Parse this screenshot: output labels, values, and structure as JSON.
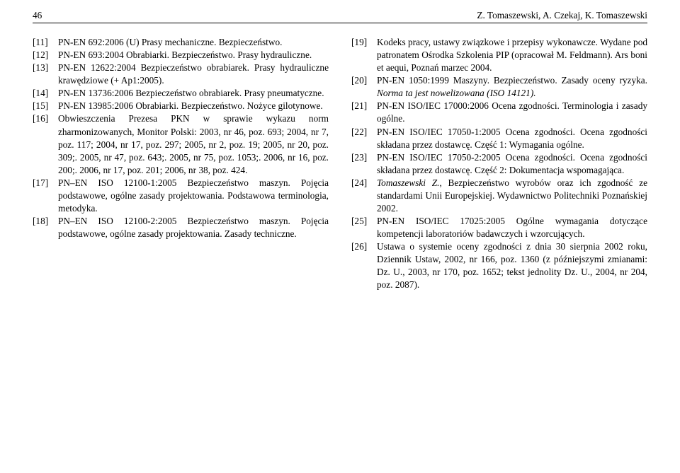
{
  "header": {
    "page_number": "46",
    "authors": "Z. Tomaszewski, A. Czekaj, K. Tomaszewski"
  },
  "left": {
    "refs": [
      {
        "n": "[11]",
        "text": "PN-EN 692:2006 (U) Prasy mechaniczne. Bezpieczeństwo."
      },
      {
        "n": "[12]",
        "text": "PN-EN 693:2004 Obrabiarki. Bezpieczeństwo. Prasy hydrauliczne."
      },
      {
        "n": "[13]",
        "text": "PN-EN 12622:2004 Bezpieczeństwo obrabiarek. Prasy hydrauliczne krawędziowe (+ Ap1:2005)."
      },
      {
        "n": "[14]",
        "text": "PN-EN 13736:2006 Bezpieczeństwo obrabiarek. Prasy pneumatyczne."
      },
      {
        "n": "[15]",
        "text": "PN-EN 13985:2006 Obrabiarki. Bezpieczeństwo. Nożyce gilotynowe."
      },
      {
        "n": "[16]",
        "text": "Obwieszczenia Prezesa PKN w sprawie wykazu norm zharmonizowanych, Monitor Polski: 2003, nr 46, poz. 693; 2004, nr 7, poz. 117; 2004, nr 17, poz. 297; 2005, nr 2, poz. 19; 2005, nr 20, poz. 309;. 2005, nr 47, poz. 643;. 2005, nr 75, poz. 1053;. 2006, nr 16, poz. 200;. 2006, nr 17, poz. 201; 2006, nr 38, poz. 424."
      },
      {
        "n": "[17]",
        "text": "PN–EN ISO 12100-1:2005 Bezpieczeństwo maszyn. Pojęcia podstawowe, ogólne zasady projektowania. Podstawowa terminologia, metodyka."
      },
      {
        "n": "[18]",
        "text": "PN–EN ISO 12100-2:2005 Bezpieczeństwo maszyn. Pojęcia podstawowe, ogólne zasady projektowania. Zasady techniczne."
      }
    ]
  },
  "right": {
    "refs": [
      {
        "n": "[19]",
        "text": "Kodeks pracy, ustawy związkowe i przepisy wykonawcze. Wydane pod patronatem Ośrodka Szkolenia PIP (opracował M. Feldmann). Ars boni et aequi, Poznań marzec 2004."
      },
      {
        "n": "[20]",
        "pre": "PN-EN 1050:1999 Maszyny. Bezpieczeństwo. Zasady oceny ryzyka. ",
        "italic": "Norma ta jest nowelizowana (ISO 14121)."
      },
      {
        "n": "[21]",
        "text": "PN-EN ISO/IEC 17000:2006 Ocena zgodności. Terminologia i zasady ogólne."
      },
      {
        "n": "[22]",
        "text": "PN-EN ISO/IEC 17050-1:2005 Ocena zgodności. Ocena zgodności składana przez dostawcę. Część 1: Wymagania ogólne."
      },
      {
        "n": "[23]",
        "text": "PN-EN ISO/IEC 17050-2:2005 Ocena zgodności. Ocena zgodności składana przez dostawcę. Część 2: Dokumentacja wspomagająca."
      },
      {
        "n": "[24]",
        "author_italic": "Tomaszewski Z.",
        "post": ", Bezpieczeństwo wyrobów oraz ich zgodność ze standardami Unii Europejskiej. Wydawnictwo Politechniki Poznańskiej 2002."
      },
      {
        "n": "[25]",
        "text": "PN-EN ISO/IEC 17025:2005 Ogólne wymagania dotyczące kompetencji laboratoriów badawczych i wzorcujących."
      },
      {
        "n": "[26]",
        "text": "Ustawa o systemie oceny zgodności z dnia 30 sierpnia 2002 roku, Dziennik Ustaw, 2002, nr 166, poz. 1360 (z późniejszymi zmianami: Dz. U., 2003, nr 170, poz. 1652; tekst jednolity Dz. U., 2004, nr 204, poz. 2087)."
      }
    ]
  }
}
